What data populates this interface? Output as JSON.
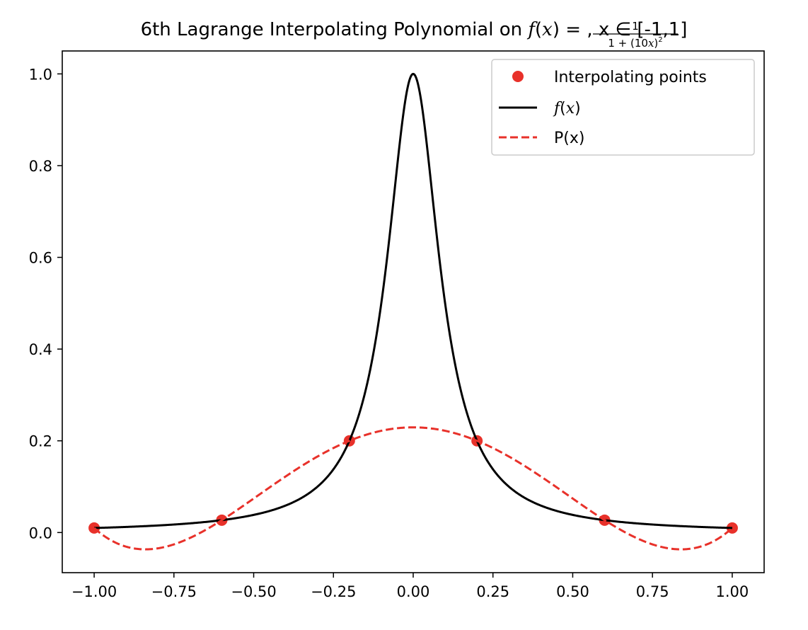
{
  "chart_data": {
    "type": "line",
    "title": {
      "prefix": "6th Lagrange Interpolating Polynomial on ",
      "f_italic": "f",
      "paren_x_open": "(",
      "x_italic": "x",
      "paren_x_close": ")",
      "equals": " = ",
      "frac_num": "1",
      "frac_den_a": "1 + (10",
      "frac_den_x": "x",
      "frac_den_b": ")",
      "frac_den_sup": "2",
      "suffix": ", x ∈ [-1,1]"
    },
    "xlabel": "",
    "ylabel": "",
    "xlim": [
      -1.1,
      1.1
    ],
    "ylim": [
      -0.0875,
      1.05
    ],
    "x_ticks": [
      -1.0,
      -0.75,
      -0.5,
      -0.25,
      0.0,
      0.25,
      0.5,
      0.75,
      1.0
    ],
    "x_tick_labels": [
      "−1.00",
      "−0.75",
      "−0.50",
      "−0.25",
      "0.00",
      "0.25",
      "0.50",
      "0.75",
      "1.00"
    ],
    "y_ticks": [
      0.0,
      0.2,
      0.4,
      0.6,
      0.8,
      1.0
    ],
    "y_tick_labels": [
      "0.0",
      "0.2",
      "0.4",
      "0.6",
      "0.8",
      "1.0"
    ],
    "grid": false,
    "legend_position": "top-right",
    "series": [
      {
        "name": "Interpolating points",
        "kind": "scatter",
        "color": "#e8312a",
        "x": [
          -1.0,
          -0.6,
          -0.2,
          0.2,
          0.6,
          1.0
        ],
        "y": [
          0.0099,
          0.027,
          0.2,
          0.2,
          0.027,
          0.0099
        ]
      },
      {
        "name": "f(x)",
        "kind": "line",
        "style": "solid",
        "color": "#000000",
        "function": "1/(1+(10x)^2)",
        "x_range": [
          -1.0,
          1.0
        ]
      },
      {
        "name": "P(x)",
        "kind": "line",
        "style": "dashed",
        "color": "#e8312a",
        "polynomial": "degree-6 Lagrange interpolant of f at the interpolating points",
        "x_range": [
          -1.0,
          1.0
        ]
      }
    ],
    "legend": {
      "points_label": "Interpolating points",
      "fx_f": "f",
      "fx_open": "(",
      "fx_x": "x",
      "fx_close": ")",
      "px_label": "P(x)"
    }
  }
}
